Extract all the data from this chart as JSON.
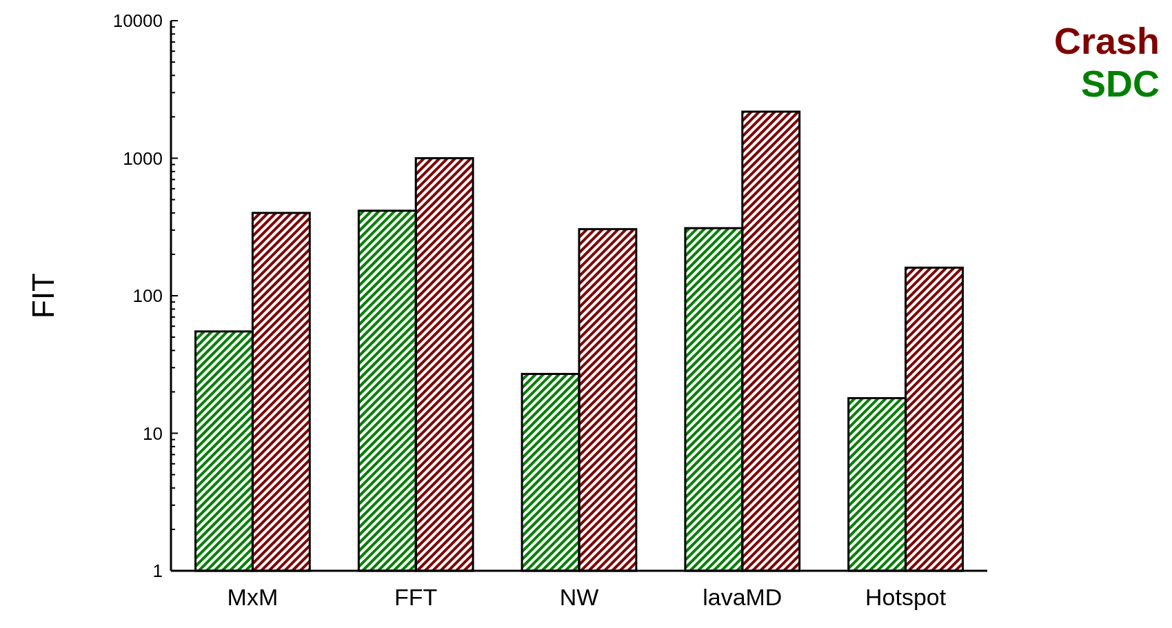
{
  "chart_data": {
    "type": "bar",
    "ylabel": "FIT",
    "categories": [
      "MxM",
      "FFT",
      "NW",
      "lavaMD",
      "Hotspot"
    ],
    "series": [
      {
        "name": "SDC",
        "color": "#008000",
        "values": [
          55,
          415,
          27,
          310,
          18
        ]
      },
      {
        "name": "Crash",
        "color": "#800000",
        "values": [
          400,
          1000,
          305,
          2180,
          160
        ]
      }
    ],
    "log": true,
    "ylim": [
      1,
      10000
    ],
    "yticks": [
      1,
      {
        "value": 2,
        "label": null
      },
      {
        "value": 3,
        "label": null
      },
      {
        "value": 4,
        "label": null
      },
      {
        "value": 5,
        "label": null
      },
      {
        "value": 6,
        "label": null
      },
      {
        "value": 7,
        "label": null
      },
      {
        "value": 8,
        "label": null
      },
      {
        "value": 9,
        "label": null
      },
      10,
      {
        "value": 20,
        "label": null
      },
      {
        "value": 30,
        "label": null
      },
      {
        "value": 40,
        "label": null
      },
      {
        "value": 50,
        "label": null
      },
      {
        "value": 60,
        "label": null
      },
      {
        "value": 70,
        "label": null
      },
      {
        "value": 80,
        "label": null
      },
      {
        "value": 90,
        "label": null
      },
      100,
      {
        "value": 200,
        "label": null
      },
      {
        "value": 300,
        "label": null
      },
      {
        "value": 400,
        "label": null
      },
      {
        "value": 500,
        "label": null
      },
      {
        "value": 600,
        "label": null
      },
      {
        "value": 700,
        "label": null
      },
      {
        "value": 800,
        "label": null
      },
      {
        "value": 900,
        "label": null
      },
      1000,
      {
        "value": 2000,
        "label": null
      },
      {
        "value": 3000,
        "label": null
      },
      {
        "value": 4000,
        "label": null
      },
      {
        "value": 5000,
        "label": null
      },
      {
        "value": 6000,
        "label": null
      },
      {
        "value": 7000,
        "label": null
      },
      {
        "value": 8000,
        "label": null
      },
      {
        "value": 9000,
        "label": null
      },
      10000
    ],
    "grid": false,
    "legend": "top right"
  }
}
